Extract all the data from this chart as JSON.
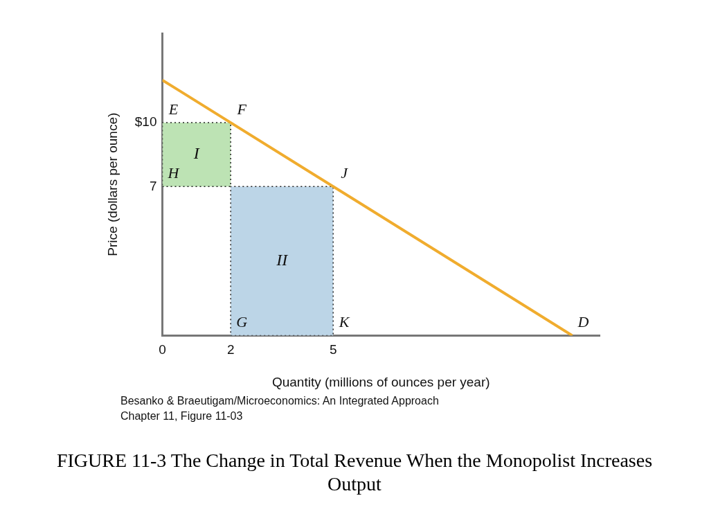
{
  "chart_data": {
    "type": "line",
    "title": "FIGURE 11-3 The Change in Total Revenue When the Monopolist Increases Output",
    "xlabel": "Quantity (millions of ounces per year)",
    "ylabel": "Price (dollars per ounce)",
    "series": [
      {
        "color": "#f0ac2e",
        "x": [
          0,
          12
        ],
        "values": [
          12,
          0
        ]
      },
      {
        "type": "area",
        "name": "I",
        "color": "#bde3b4",
        "x": [
          0,
          2,
          2,
          0,
          0
        ],
        "values": [
          7,
          7,
          10,
          10,
          7
        ],
        "line_style": "dotted"
      },
      {
        "type": "area",
        "name": "II",
        "color": "#bcd5e7",
        "x": [
          2,
          5,
          5,
          2,
          2
        ],
        "values": [
          0,
          0,
          7,
          7,
          0
        ],
        "line_style": "dotted"
      }
    ],
    "xlim": [
      0,
      12.8
    ],
    "xticks": [
      0,
      2,
      5
    ],
    "ylim": [
      0,
      14.2
    ],
    "yticks": [
      {
        "value": 10,
        "label": "$10"
      },
      7
    ],
    "grid": false,
    "legend": false,
    "marker": "none",
    "annotations": [
      {
        "text": "E",
        "x": 0,
        "y": 10
      },
      {
        "text": "F",
        "x": 2,
        "y": 10
      },
      {
        "text": "H",
        "x": 0,
        "y": 7
      },
      {
        "text": "J",
        "x": 5,
        "y": 7
      },
      {
        "text": "G",
        "x": 2,
        "y": 0
      },
      {
        "text": "K",
        "x": 5,
        "y": 0
      },
      {
        "text": "D",
        "x": 12,
        "y": 0
      },
      "Besanko & Braeutigam/Microeconomics: An Integrated Approach",
      "Chapter 11, Figure 11-03"
    ]
  }
}
